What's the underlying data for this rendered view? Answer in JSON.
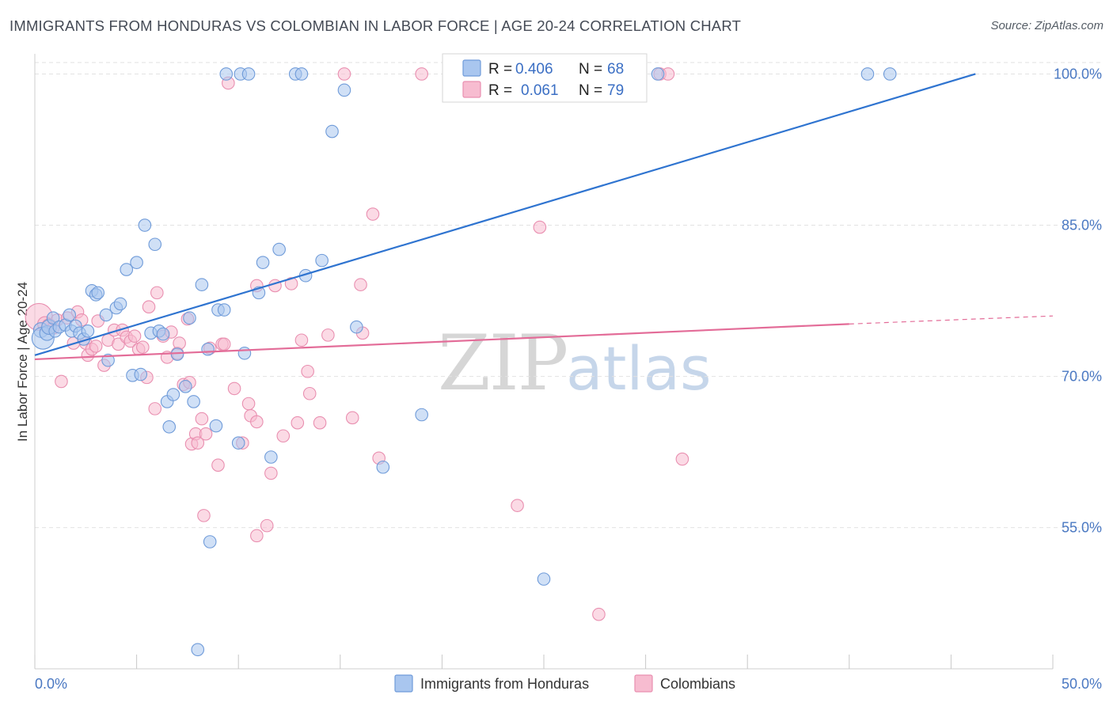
{
  "title": "IMMIGRANTS FROM HONDURAS VS COLOMBIAN IN LABOR FORCE | AGE 20-24 CORRELATION CHART",
  "source": "Source: ZipAtlas.com",
  "watermark": {
    "zip": "ZIP",
    "atlas": "atlas"
  },
  "legend": {
    "r_label": "R =",
    "n_label": "N =",
    "rows": [
      {
        "r": "0.406",
        "n": "68"
      },
      {
        "r": "0.061",
        "n": "79"
      }
    ]
  },
  "colors": {
    "blue_fill": "#a9c6ef",
    "blue_stroke": "#6f9bd9",
    "blue_line": "#2f74d0",
    "pink_fill": "#f7bcd0",
    "pink_stroke": "#e98fb0",
    "pink_line": "#e36c98",
    "tick_text": "#4a78c2",
    "grid": "#e2e2e2"
  },
  "chart_data": {
    "type": "scatter",
    "title": "IMMIGRANTS FROM HONDURAS VS COLOMBIAN IN LABOR FORCE | AGE 20-24 CORRELATION CHART",
    "xlabel": "",
    "ylabel": "In Labor Force | Age 20-24",
    "xlim": [
      0,
      50
    ],
    "ylim": [
      41,
      102
    ],
    "x_tick_labels": [
      "0.0%",
      "50.0%"
    ],
    "y_ticks": [
      55,
      70,
      85,
      100
    ],
    "y_tick_labels": [
      "55.0%",
      "70.0%",
      "85.0%",
      "100.0%"
    ],
    "legend_position": "top-center",
    "series": [
      {
        "name": "Immigrants from Honduras",
        "color": "#a9c6ef",
        "R": 0.406,
        "N": 68,
        "trendline": {
          "x0": 0,
          "y0": 72.1,
          "x1": 46.2,
          "y1": 100.0
        },
        "points": [
          [
            0.3,
            74.6,
            6
          ],
          [
            0.4,
            73.8,
            9
          ],
          [
            0.6,
            74.3,
            6
          ],
          [
            0.7,
            74.9,
            6
          ],
          [
            0.9,
            75.8,
            5
          ],
          [
            1.0,
            74.5,
            5
          ],
          [
            1.2,
            74.9,
            5
          ],
          [
            1.5,
            75.1,
            5
          ],
          [
            1.7,
            76.1,
            5
          ],
          [
            1.8,
            74.5,
            5
          ],
          [
            2.0,
            75.0,
            5
          ],
          [
            2.2,
            74.3,
            5
          ],
          [
            2.4,
            73.7,
            5
          ],
          [
            2.6,
            74.5,
            5
          ],
          [
            2.8,
            78.5,
            5
          ],
          [
            3.0,
            78.1,
            5
          ],
          [
            3.1,
            78.3,
            5
          ],
          [
            3.5,
            76.1,
            5
          ],
          [
            3.6,
            71.6,
            5
          ],
          [
            4.0,
            76.8,
            5
          ],
          [
            4.2,
            77.2,
            5
          ],
          [
            4.5,
            80.6,
            5
          ],
          [
            4.8,
            70.1,
            5
          ],
          [
            5.0,
            81.3,
            5
          ],
          [
            5.2,
            70.2,
            5
          ],
          [
            5.4,
            85.0,
            5
          ],
          [
            5.7,
            74.3,
            5
          ],
          [
            5.9,
            83.1,
            5
          ],
          [
            6.1,
            74.5,
            5
          ],
          [
            6.3,
            74.2,
            5
          ],
          [
            6.5,
            67.5,
            5
          ],
          [
            6.6,
            65.0,
            5
          ],
          [
            6.8,
            68.2,
            5
          ],
          [
            7.0,
            72.2,
            5
          ],
          [
            7.4,
            69.0,
            5
          ],
          [
            7.6,
            75.8,
            5
          ],
          [
            7.8,
            67.5,
            5
          ],
          [
            8.2,
            79.1,
            5
          ],
          [
            8.5,
            72.7,
            5
          ],
          [
            8.6,
            53.6,
            5
          ],
          [
            8.9,
            65.1,
            5
          ],
          [
            9.0,
            76.6,
            5
          ],
          [
            9.3,
            76.6,
            5
          ],
          [
            9.4,
            100.0,
            5
          ],
          [
            10.0,
            63.4,
            5
          ],
          [
            10.1,
            100.0,
            5
          ],
          [
            10.3,
            72.3,
            5
          ],
          [
            10.5,
            100.0,
            5
          ],
          [
            11.0,
            78.3,
            5
          ],
          [
            11.2,
            81.3,
            5
          ],
          [
            11.6,
            62.0,
            5
          ],
          [
            12.0,
            82.6,
            5
          ],
          [
            12.8,
            100.0,
            5
          ],
          [
            13.1,
            100.0,
            5
          ],
          [
            13.3,
            80.0,
            5
          ],
          [
            14.1,
            81.5,
            5
          ],
          [
            14.6,
            94.3,
            5
          ],
          [
            15.2,
            98.4,
            5
          ],
          [
            15.8,
            74.9,
            5
          ],
          [
            17.1,
            61.0,
            5
          ],
          [
            19.0,
            66.2,
            5
          ],
          [
            8.0,
            42.9,
            5
          ],
          [
            25.0,
            49.9,
            5
          ],
          [
            25.1,
            100.0,
            5
          ],
          [
            28.2,
            100.0,
            5
          ],
          [
            30.6,
            100.0,
            5
          ],
          [
            40.9,
            100.0,
            5
          ],
          [
            42.0,
            100.0,
            5
          ]
        ]
      },
      {
        "name": "Colombians",
        "color": "#f7bcd0",
        "R": 0.061,
        "N": 79,
        "trendline": {
          "x0": 0,
          "y0": 71.7,
          "x1": 40.0,
          "y1": 75.2,
          "dashed_to": {
            "x": 50,
            "y": 76.0
          }
        },
        "points": [
          [
            0.2,
            75.9,
            11
          ],
          [
            0.5,
            75.2,
            6
          ],
          [
            0.7,
            75.0,
            6
          ],
          [
            0.9,
            74.8,
            5
          ],
          [
            1.1,
            75.6,
            5
          ],
          [
            1.3,
            69.5,
            5
          ],
          [
            1.6,
            75.8,
            5
          ],
          [
            1.9,
            73.3,
            5
          ],
          [
            2.1,
            76.4,
            5
          ],
          [
            2.3,
            75.6,
            5
          ],
          [
            2.5,
            73.3,
            5
          ],
          [
            2.6,
            72.1,
            5
          ],
          [
            2.8,
            72.7,
            5
          ],
          [
            3.0,
            73.0,
            5
          ],
          [
            3.1,
            75.5,
            5
          ],
          [
            3.4,
            71.1,
            5
          ],
          [
            3.6,
            73.6,
            5
          ],
          [
            3.9,
            74.6,
            5
          ],
          [
            4.1,
            73.2,
            5
          ],
          [
            4.3,
            74.6,
            5
          ],
          [
            4.5,
            73.9,
            5
          ],
          [
            4.7,
            73.5,
            5
          ],
          [
            4.9,
            74.0,
            5
          ],
          [
            5.1,
            72.7,
            5
          ],
          [
            5.3,
            72.9,
            5
          ],
          [
            5.5,
            69.9,
            5
          ],
          [
            5.6,
            76.9,
            5
          ],
          [
            5.9,
            66.8,
            5
          ],
          [
            6.0,
            78.3,
            5
          ],
          [
            6.3,
            74.0,
            5
          ],
          [
            6.5,
            71.9,
            5
          ],
          [
            6.7,
            74.4,
            5
          ],
          [
            7.0,
            72.3,
            5
          ],
          [
            7.1,
            73.3,
            5
          ],
          [
            7.3,
            69.2,
            5
          ],
          [
            7.5,
            75.7,
            5
          ],
          [
            7.6,
            69.4,
            5
          ],
          [
            7.7,
            63.3,
            5
          ],
          [
            7.9,
            64.3,
            5
          ],
          [
            8.0,
            63.4,
            5
          ],
          [
            8.2,
            65.8,
            5
          ],
          [
            8.3,
            56.2,
            5
          ],
          [
            8.4,
            64.3,
            5
          ],
          [
            8.6,
            72.8,
            5
          ],
          [
            9.0,
            61.2,
            5
          ],
          [
            9.2,
            73.2,
            5
          ],
          [
            9.3,
            73.2,
            5
          ],
          [
            9.5,
            99.1,
            5
          ],
          [
            9.8,
            68.8,
            5
          ],
          [
            10.2,
            63.4,
            5
          ],
          [
            10.5,
            67.3,
            5
          ],
          [
            10.6,
            66.1,
            5
          ],
          [
            10.9,
            79.0,
            5
          ],
          [
            10.9,
            65.5,
            5
          ],
          [
            10.9,
            54.2,
            5
          ],
          [
            11.4,
            55.2,
            5
          ],
          [
            11.6,
            60.4,
            5
          ],
          [
            11.8,
            79.0,
            5
          ],
          [
            12.2,
            64.1,
            5
          ],
          [
            12.6,
            79.2,
            5
          ],
          [
            12.9,
            65.4,
            5
          ],
          [
            13.1,
            73.6,
            5
          ],
          [
            13.4,
            70.5,
            5
          ],
          [
            13.5,
            68.3,
            5
          ],
          [
            14.0,
            65.4,
            5
          ],
          [
            14.4,
            74.1,
            5
          ],
          [
            15.2,
            100.0,
            5
          ],
          [
            15.6,
            65.9,
            5
          ],
          [
            16.0,
            79.1,
            5
          ],
          [
            16.1,
            74.3,
            5
          ],
          [
            16.6,
            86.1,
            5
          ],
          [
            16.9,
            61.9,
            5
          ],
          [
            19.0,
            100.0,
            5
          ],
          [
            23.7,
            57.2,
            5
          ],
          [
            24.8,
            84.8,
            5
          ],
          [
            27.7,
            46.4,
            5
          ],
          [
            30.7,
            100.0,
            5
          ],
          [
            31.1,
            100.0,
            5
          ],
          [
            31.8,
            61.8,
            5
          ]
        ]
      }
    ]
  },
  "bottom_legend": [
    "Immigrants from Honduras",
    "Colombians"
  ]
}
